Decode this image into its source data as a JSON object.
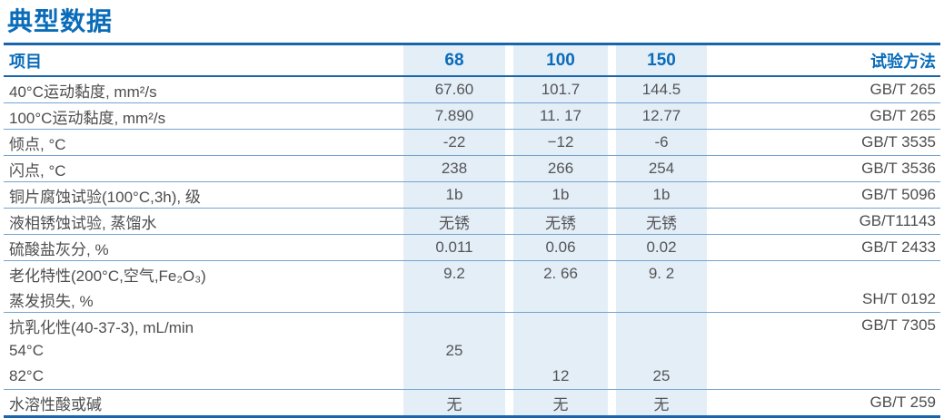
{
  "title": "典型数据",
  "colors": {
    "accent_blue": "#0a6cb9",
    "rule_blue": "#1965ab",
    "separator_blue": "#74a3d2",
    "stripe_background": "#e4eef7",
    "body_text": "#4c4d4f"
  },
  "table": {
    "header": {
      "item": "项目",
      "grades": [
        "68",
        "100",
        "150"
      ],
      "method": "试验方法"
    },
    "rows": [
      {
        "label": "40°C运动黏度, mm²/s",
        "values": [
          "67.60",
          "101.7",
          "144.5"
        ],
        "method": "GB/T 265"
      },
      {
        "label": "100°C运动黏度, mm²/s",
        "values": [
          "7.890",
          "11. 17",
          "12.77"
        ],
        "method": "GB/T 265"
      },
      {
        "label": "倾点, °C",
        "values": [
          "-22",
          "−12",
          "-6"
        ],
        "method": "GB/T 3535"
      },
      {
        "label": "闪点, °C",
        "values": [
          "238",
          "266",
          "254"
        ],
        "method": "GB/T 3536"
      },
      {
        "label": "铜片腐蚀试验(100°C,3h), 级",
        "values": [
          "1b",
          "1b",
          "1b"
        ],
        "method": "GB/T 5096"
      },
      {
        "label": "液相锈蚀试验, 蒸馏水",
        "values": [
          "无锈",
          "无锈",
          "无锈"
        ],
        "method": "GB/T11143"
      },
      {
        "label": "硫酸盐灰分, %",
        "values": [
          "0.011",
          "0.06",
          "0.02"
        ],
        "method": "GB/T 2433"
      },
      {
        "label": "老化特性(200°C,空气,Fe₂O₃)",
        "values": [
          "9.2",
          "2. 66",
          "9. 2"
        ],
        "method": ""
      },
      {
        "label": "蒸发损失, %",
        "values": [
          "",
          "",
          ""
        ],
        "method": "SH/T 0192"
      },
      {
        "label": "抗乳化性(40-37-3), mL/min",
        "values": [
          "",
          "",
          ""
        ],
        "method": "GB/T 7305"
      },
      {
        "label": "54°C",
        "values": [
          "25",
          "",
          ""
        ],
        "method": ""
      },
      {
        "label": "82°C",
        "values": [
          "",
          "12",
          "25"
        ],
        "method": ""
      },
      {
        "label": "水溶性酸或碱",
        "values": [
          "无",
          "无",
          "无"
        ],
        "method": "GB/T 259"
      }
    ]
  }
}
